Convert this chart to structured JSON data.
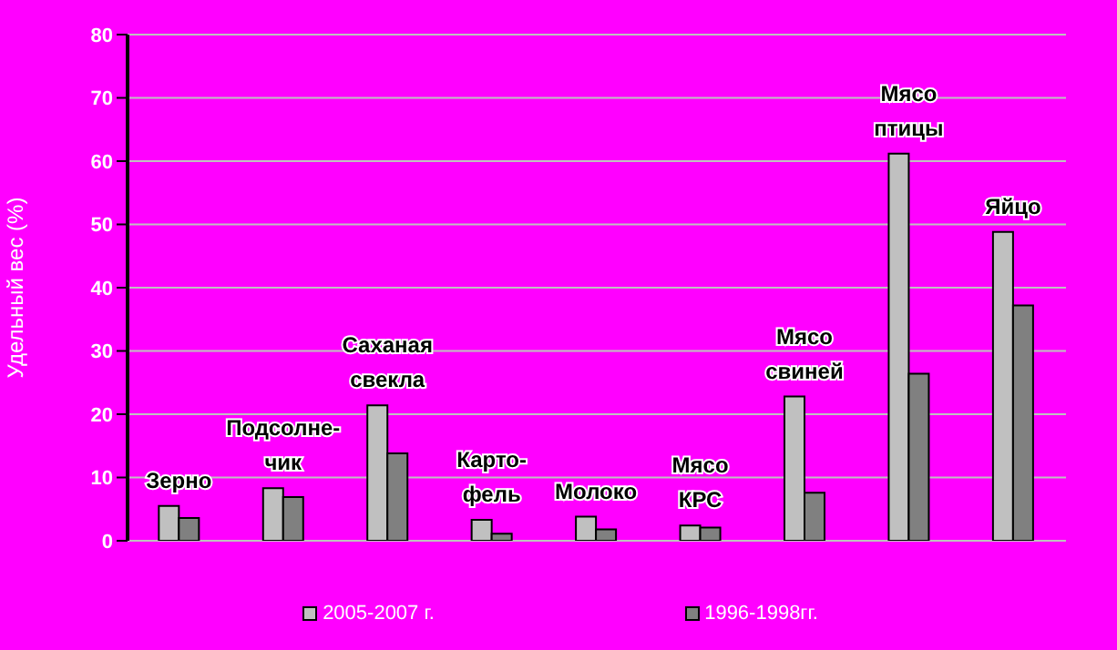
{
  "chart_data": {
    "type": "bar",
    "ylabel": "Удельный вес  (%)",
    "categories": [
      "Зерно",
      "Подсолне-\nчик",
      "Саханая\nсвекла",
      "Карто-\nфель",
      "Молоко",
      "Мясо\nКРС",
      "Мясо\nсвиней",
      "Мясо\nптицы",
      "Яйцо"
    ],
    "series": [
      {
        "name": "2005-2007 г.",
        "color": "#c0c0c0",
        "values": [
          5.5,
          8.3,
          21.4,
          3.3,
          3.8,
          2.4,
          22.8,
          61.2,
          48.8
        ]
      },
      {
        "name": "1996-1998гг.",
        "color": "#808080",
        "values": [
          3.6,
          6.9,
          13.8,
          1.1,
          1.8,
          2.1,
          7.6,
          26.4,
          37.2
        ]
      }
    ],
    "ylim": [
      0,
      80
    ],
    "yticks": [
      0,
      10,
      20,
      30,
      40,
      50,
      60,
      70,
      80
    ],
    "grid": "y",
    "legend": "bottom"
  }
}
